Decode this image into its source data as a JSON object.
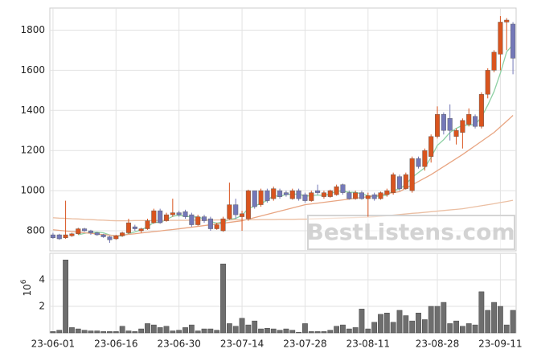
{
  "chart_data": {
    "type": "candlestick",
    "watermark": "BestListens.com",
    "categories": [
      "23-06-01",
      null,
      null,
      null,
      null,
      null,
      null,
      null,
      null,
      null,
      "23-06-16",
      null,
      null,
      null,
      null,
      null,
      null,
      null,
      null,
      null,
      "23-06-30",
      null,
      null,
      null,
      null,
      null,
      null,
      null,
      null,
      null,
      "23-07-14",
      null,
      null,
      null,
      null,
      null,
      null,
      null,
      null,
      null,
      "23-07-28",
      null,
      null,
      null,
      null,
      null,
      null,
      null,
      null,
      null,
      "23-08-11",
      null,
      null,
      null,
      null,
      null,
      null,
      null,
      null,
      null,
      null,
      "23-08-28",
      null,
      null,
      null,
      null,
      null,
      null,
      null,
      null,
      null,
      "23-09-11",
      null,
      null
    ],
    "open": [
      780,
      780,
      765,
      775,
      785,
      810,
      800,
      790,
      780,
      770,
      760,
      775,
      790,
      820,
      800,
      810,
      840,
      900,
      850,
      880,
      890,
      895,
      880,
      830,
      870,
      860,
      810,
      800,
      860,
      930,
      870,
      860,
      1000,
      930,
      1000,
      960,
      1000,
      990,
      960,
      1000,
      980,
      950,
      1000,
      970,
      970,
      980,
      1030,
      990,
      960,
      990,
      960,
      980,
      960,
      980,
      990,
      1070,
      1010,
      1000,
      1160,
      1120,
      1170,
      1270,
      1380,
      1360,
      1270,
      1290,
      1330,
      1370,
      1320,
      1480,
      1600,
      1680,
      1840,
      1830
    ],
    "high": [
      790,
      785,
      950,
      790,
      815,
      815,
      805,
      795,
      785,
      775,
      780,
      795,
      860,
      830,
      815,
      860,
      910,
      910,
      890,
      960,
      900,
      905,
      890,
      880,
      880,
      870,
      840,
      870,
      1040,
      960,
      900,
      1005,
      1000,
      1010,
      1010,
      1020,
      1010,
      1000,
      1010,
      1010,
      990,
      1000,
      1030,
      1000,
      1005,
      1030,
      1035,
      1000,
      1000,
      1000,
      990,
      990,
      995,
      1010,
      1090,
      1080,
      1090,
      1170,
      1170,
      1210,
      1280,
      1420,
      1390,
      1430,
      1310,
      1360,
      1410,
      1380,
      1490,
      1610,
      1700,
      1870,
      1860,
      1840
    ],
    "low": [
      760,
      755,
      760,
      770,
      780,
      795,
      780,
      775,
      765,
      740,
      755,
      770,
      785,
      800,
      790,
      805,
      835,
      835,
      845,
      870,
      870,
      860,
      820,
      825,
      840,
      800,
      805,
      795,
      855,
      860,
      800,
      850,
      910,
      920,
      940,
      950,
      960,
      970,
      955,
      950,
      940,
      945,
      980,
      960,
      965,
      975,
      980,
      955,
      955,
      955,
      870,
      950,
      955,
      970,
      980,
      1000,
      1005,
      990,
      1110,
      1100,
      1140,
      1260,
      1280,
      1250,
      1230,
      1210,
      1320,
      1310,
      1310,
      1460,
      1590,
      1600,
      1700,
      1580
    ],
    "close": [
      765,
      760,
      780,
      785,
      810,
      800,
      790,
      780,
      770,
      755,
      775,
      790,
      840,
      810,
      810,
      850,
      900,
      840,
      880,
      890,
      880,
      870,
      830,
      870,
      850,
      810,
      830,
      860,
      930,
      880,
      885,
      1000,
      920,
      1000,
      950,
      1010,
      970,
      980,
      1000,
      960,
      950,
      990,
      990,
      990,
      1000,
      1020,
      990,
      960,
      990,
      960,
      975,
      960,
      990,
      1000,
      1080,
      1010,
      1080,
      1160,
      1120,
      1200,
      1270,
      1380,
      1300,
      1300,
      1300,
      1350,
      1380,
      1320,
      1480,
      1600,
      1690,
      1840,
      1850,
      1660
    ],
    "up_color": "#d9541e",
    "down_color": "#7478b8",
    "ylim": [
      700,
      1910
    ],
    "yticks": [
      800,
      1000,
      1200,
      1400,
      1600,
      1800
    ],
    "grid": true,
    "series": [
      {
        "color": "#8fd1a5",
        "values": [
          null,
          null,
          null,
          null,
          780,
          787,
          793,
          793,
          790,
          779,
          774,
          774,
          786,
          794,
          805,
          820,
          842,
          842,
          856,
          872,
          878,
          872,
          870,
          868,
          860,
          846,
          838,
          844,
          856,
          862,
          877,
          911,
          923,
          937,
          951,
          976,
          970,
          982,
          982,
          984,
          972,
          976,
          978,
          976,
          984,
          998,
          998,
          992,
          992,
          984,
          975,
          969,
          975,
          977,
          1001,
          1008,
          1032,
          1066,
          1090,
          1114,
          1166,
          1226,
          1254,
          1290,
          1310,
          1326,
          1326,
          1330,
          1366,
          1426,
          1494,
          1586,
          1692,
          1728
        ]
      },
      {
        "color": "#e8a582",
        "values": [
          805,
          802,
          799,
          796,
          793,
          790,
          787,
          784,
          781,
          778,
          775,
          778,
          782,
          785,
          789,
          792,
          796,
          799,
          803,
          806,
          810,
          814,
          818,
          822,
          826,
          830,
          834,
          838,
          842,
          846,
          850,
          858,
          866,
          874,
          882,
          890,
          898,
          906,
          914,
          922,
          930,
          934,
          938,
          942,
          946,
          950,
          954,
          958,
          962,
          966,
          970,
          975,
          980,
          985,
          990,
          995,
          1012,
          1029,
          1046,
          1063,
          1080,
          1100,
          1120,
          1140,
          1160,
          1180,
          1202,
          1224,
          1246,
          1268,
          1290,
          1318,
          1346,
          1375
        ]
      },
      {
        "color": "#ebbfa3",
        "values": [
          865,
          863,
          862,
          860,
          859,
          857,
          856,
          854,
          853,
          851,
          850,
          850,
          850,
          851,
          851,
          851,
          851,
          851,
          852,
          852,
          852,
          852,
          853,
          853,
          853,
          853,
          854,
          854,
          854,
          855,
          855,
          855,
          855,
          856,
          856,
          856,
          857,
          857,
          857,
          858,
          858,
          859,
          860,
          861,
          862,
          863,
          864,
          865,
          866,
          867,
          868,
          870,
          873,
          875,
          878,
          881,
          884,
          887,
          889,
          892,
          895,
          898,
          901,
          904,
          907,
          910,
          915,
          920,
          925,
          930,
          935,
          941,
          946,
          952
        ]
      }
    ],
    "volume": {
      "color": "#6e6e6e",
      "ylabel_base": "10",
      "ylabel_exponent": "6",
      "ylim": [
        0,
        6
      ],
      "yticks": [
        2,
        4
      ],
      "values": [
        0.1,
        0.2,
        5.5,
        0.4,
        0.3,
        0.2,
        0.15,
        0.15,
        0.1,
        0.1,
        0.1,
        0.5,
        0.15,
        0.1,
        0.3,
        0.7,
        0.6,
        0.4,
        0.5,
        0.15,
        0.2,
        0.4,
        0.6,
        0.15,
        0.3,
        0.3,
        0.2,
        5.2,
        0.7,
        0.5,
        1.1,
        0.6,
        0.9,
        0.3,
        0.35,
        0.3,
        0.2,
        0.3,
        0.2,
        0.05,
        0.7,
        0.1,
        0.1,
        0.1,
        0.2,
        0.5,
        0.6,
        0.3,
        0.4,
        1.8,
        0.3,
        0.8,
        1.4,
        1.5,
        0.8,
        1.7,
        1.3,
        0.9,
        1.5,
        1.0,
        2.0,
        2.0,
        2.3,
        0.7,
        0.9,
        0.5,
        0.7,
        0.6,
        3.1,
        1.7,
        2.3,
        2.0,
        0.6,
        1.7
      ]
    }
  }
}
